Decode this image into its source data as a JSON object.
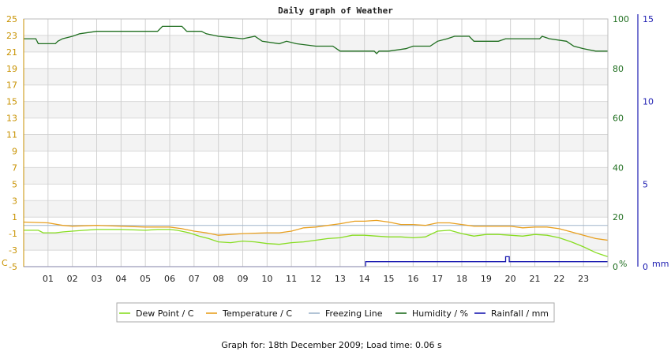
{
  "chart_data": {
    "type": "line",
    "title": "Daily graph of Weather",
    "footer": "Graph for: 18th December 2009; Load time: 0.06 s",
    "x": [
      "01",
      "02",
      "03",
      "04",
      "05",
      "06",
      "07",
      "08",
      "09",
      "10",
      "11",
      "12",
      "13",
      "14",
      "15",
      "16",
      "17",
      "18",
      "19",
      "20",
      "21",
      "22",
      "23"
    ],
    "axes": {
      "left": {
        "unit": "C",
        "min": -5,
        "max": 25,
        "ticks": [
          25,
          23,
          21,
          19,
          17,
          15,
          13,
          11,
          9,
          7,
          5,
          3,
          1,
          -1,
          -3,
          -5
        ],
        "color": "#c89200"
      },
      "humidity": {
        "unit": "%",
        "min": 0,
        "max": 100,
        "ticks": [
          100,
          80,
          60,
          40,
          20,
          0
        ],
        "color": "#1f6e1f"
      },
      "rain": {
        "unit": "mm",
        "min": 0,
        "max": 15,
        "ticks": [
          15,
          10,
          5,
          0
        ],
        "color": "#1a1ab0"
      }
    },
    "legend": [
      {
        "label": "Dew Point / C",
        "color": "#88dd22"
      },
      {
        "label": "Temperature / C",
        "color": "#e8a020"
      },
      {
        "label": "Freezing Line",
        "color": "#9fb6cc"
      },
      {
        "label": "Humidity / %",
        "color": "#1f6e1f"
      },
      {
        "label": "Rainfall / mm",
        "color": "#1a1ab0"
      }
    ],
    "series": [
      {
        "name": "Humidity / %",
        "color": "#1f6e1f",
        "axis": "humidity",
        "points": [
          [
            0,
            92
          ],
          [
            0.5,
            92
          ],
          [
            0.6,
            90
          ],
          [
            1.3,
            90
          ],
          [
            1.4,
            91
          ],
          [
            1.6,
            92
          ],
          [
            2,
            93
          ],
          [
            2.3,
            94
          ],
          [
            3,
            95
          ],
          [
            5.5,
            95
          ],
          [
            5.7,
            97
          ],
          [
            6.5,
            97
          ],
          [
            6.7,
            95
          ],
          [
            7.3,
            95
          ],
          [
            7.5,
            94
          ],
          [
            8,
            93
          ],
          [
            9,
            92
          ],
          [
            9.5,
            93
          ],
          [
            9.8,
            91
          ],
          [
            10.5,
            90
          ],
          [
            10.8,
            91
          ],
          [
            11.2,
            90
          ],
          [
            12,
            89
          ],
          [
            12.7,
            89
          ],
          [
            13,
            87
          ],
          [
            14.4,
            87
          ],
          [
            14.5,
            86
          ],
          [
            14.6,
            87
          ],
          [
            15,
            87
          ],
          [
            15.7,
            88
          ],
          [
            16,
            89
          ],
          [
            16.7,
            89
          ],
          [
            17,
            91
          ],
          [
            17.4,
            92
          ],
          [
            17.7,
            93
          ],
          [
            18.3,
            93
          ],
          [
            18.5,
            91
          ],
          [
            19.5,
            91
          ],
          [
            19.8,
            92
          ],
          [
            21.2,
            92
          ],
          [
            21.3,
            93
          ],
          [
            21.6,
            92
          ],
          [
            22.3,
            91
          ],
          [
            22.6,
            89
          ],
          [
            23,
            88
          ],
          [
            23.5,
            87
          ],
          [
            24,
            87
          ]
        ]
      },
      {
        "name": "Temperature / C",
        "color": "#e8a020",
        "axis": "left",
        "points": [
          [
            0,
            0.4
          ],
          [
            1,
            0.3
          ],
          [
            1.6,
            0
          ],
          [
            2,
            -0.1
          ],
          [
            3,
            0
          ],
          [
            4,
            -0.1
          ],
          [
            5,
            -0.2
          ],
          [
            6,
            -0.2
          ],
          [
            6.5,
            -0.4
          ],
          [
            7,
            -0.7
          ],
          [
            7.5,
            -0.9
          ],
          [
            8,
            -1.2
          ],
          [
            9,
            -1.0
          ],
          [
            10,
            -0.9
          ],
          [
            10.5,
            -0.9
          ],
          [
            11,
            -0.7
          ],
          [
            11.5,
            -0.3
          ],
          [
            12,
            -0.2
          ],
          [
            12.5,
            0
          ],
          [
            13,
            0.2
          ],
          [
            13.6,
            0.5
          ],
          [
            14,
            0.5
          ],
          [
            14.5,
            0.6
          ],
          [
            15,
            0.4
          ],
          [
            15.5,
            0.1
          ],
          [
            16,
            0.1
          ],
          [
            16.5,
            0
          ],
          [
            17,
            0.3
          ],
          [
            17.5,
            0.3
          ],
          [
            18,
            0.1
          ],
          [
            18.5,
            -0.1
          ],
          [
            19,
            -0.1
          ],
          [
            19.5,
            -0.1
          ],
          [
            20,
            -0.1
          ],
          [
            20.5,
            -0.3
          ],
          [
            21,
            -0.2
          ],
          [
            21.5,
            -0.2
          ],
          [
            22,
            -0.4
          ],
          [
            22.5,
            -0.8
          ],
          [
            23,
            -1.2
          ],
          [
            23.5,
            -1.6
          ],
          [
            24,
            -1.8
          ]
        ]
      },
      {
        "name": "Dew Point / C",
        "color": "#88dd22",
        "axis": "left",
        "points": [
          [
            0,
            -0.6
          ],
          [
            0.6,
            -0.6
          ],
          [
            0.8,
            -0.9
          ],
          [
            1.3,
            -0.9
          ],
          [
            1.6,
            -0.8
          ],
          [
            2,
            -0.7
          ],
          [
            2.5,
            -0.6
          ],
          [
            3,
            -0.5
          ],
          [
            4,
            -0.5
          ],
          [
            5,
            -0.6
          ],
          [
            5.5,
            -0.5
          ],
          [
            6,
            -0.5
          ],
          [
            6.3,
            -0.6
          ],
          [
            6.8,
            -0.9
          ],
          [
            7.2,
            -1.3
          ],
          [
            7.6,
            -1.6
          ],
          [
            8,
            -2.0
          ],
          [
            8.5,
            -2.1
          ],
          [
            9,
            -1.9
          ],
          [
            9.5,
            -2.0
          ],
          [
            10,
            -2.2
          ],
          [
            10.5,
            -2.3
          ],
          [
            11,
            -2.1
          ],
          [
            11.5,
            -2.0
          ],
          [
            12,
            -1.8
          ],
          [
            12.5,
            -1.6
          ],
          [
            13,
            -1.5
          ],
          [
            13.5,
            -1.2
          ],
          [
            14,
            -1.2
          ],
          [
            14.5,
            -1.3
          ],
          [
            15,
            -1.4
          ],
          [
            15.5,
            -1.4
          ],
          [
            16,
            -1.5
          ],
          [
            16.5,
            -1.4
          ],
          [
            17,
            -0.7
          ],
          [
            17.5,
            -0.6
          ],
          [
            18,
            -1.0
          ],
          [
            18.5,
            -1.3
          ],
          [
            19,
            -1.1
          ],
          [
            19.5,
            -1.1
          ],
          [
            20,
            -1.2
          ],
          [
            20.5,
            -1.3
          ],
          [
            21,
            -1.1
          ],
          [
            21.5,
            -1.2
          ],
          [
            22,
            -1.5
          ],
          [
            22.5,
            -2.0
          ],
          [
            23,
            -2.6
          ],
          [
            23.5,
            -3.3
          ],
          [
            24,
            -3.8
          ]
        ]
      },
      {
        "name": "Freezing Line",
        "color": "#9fb6cc",
        "axis": "left",
        "points": [
          [
            0,
            0
          ],
          [
            24,
            0
          ]
        ]
      },
      {
        "name": "Rainfall / mm",
        "color": "#1a1ab0",
        "axis": "rain",
        "points": [
          [
            0,
            0
          ],
          [
            14.05,
            0
          ],
          [
            14.05,
            0.3
          ],
          [
            19.8,
            0.3
          ],
          [
            19.8,
            0.6
          ],
          [
            19.95,
            0.6
          ],
          [
            19.95,
            0.3
          ],
          [
            24,
            0.3
          ]
        ]
      }
    ],
    "grid": true
  }
}
